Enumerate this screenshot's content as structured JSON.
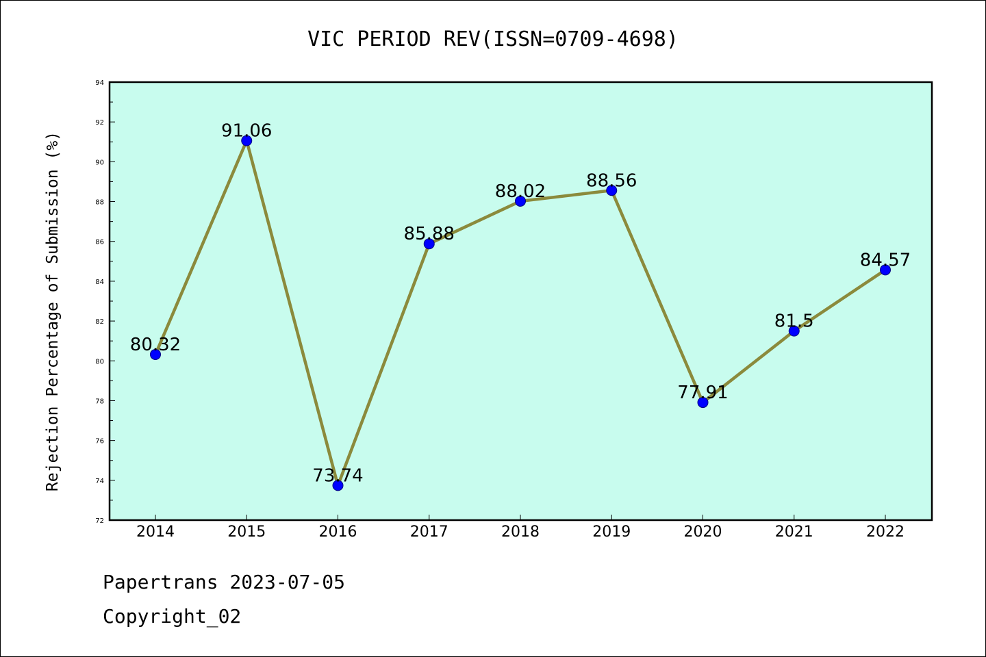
{
  "chart_data": {
    "type": "line",
    "title": "VIC PERIOD REV(ISSN=0709-4698)",
    "xlabel": "",
    "ylabel": "Rejection Percentage of Submission (%)",
    "categories": [
      "2014",
      "2015",
      "2016",
      "2017",
      "2018",
      "2019",
      "2020",
      "2021",
      "2022"
    ],
    "series": [
      {
        "values": [
          80.32,
          91.06,
          73.74,
          85.88,
          88.02,
          88.56,
          77.91,
          81.5,
          84.57
        ],
        "labels": [
          "80.32",
          "91.06",
          "73.74",
          "85.88",
          "88.02",
          "88.56",
          "77.91",
          "81.5",
          "84.57"
        ]
      }
    ],
    "ylim": [
      72,
      94
    ],
    "yticks": [
      "72",
      "74",
      "76",
      "78",
      "80",
      "82",
      "84",
      "86",
      "88",
      "90",
      "92",
      "94"
    ],
    "grid": false,
    "legend": "none",
    "colors": {
      "plot_background": "#c8fcee",
      "line": "#8b8a3c",
      "marker": "#0000ff"
    }
  },
  "footer": {
    "line1": "Papertrans 2023-07-05",
    "line2": "Copyright_02"
  }
}
